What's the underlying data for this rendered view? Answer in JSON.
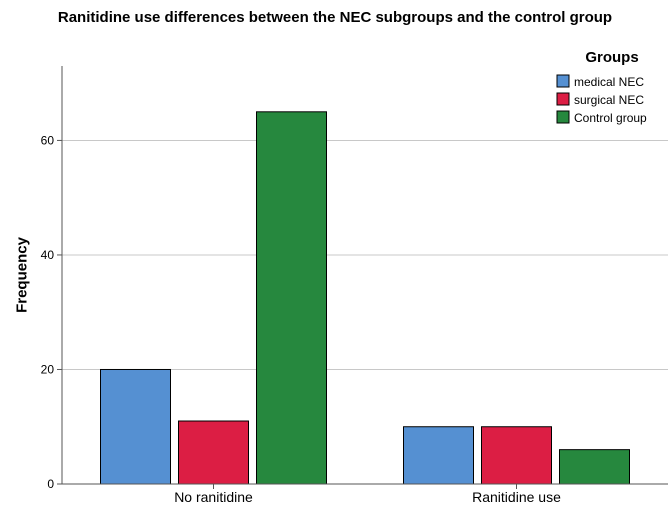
{
  "chart_data": {
    "type": "bar",
    "title": "Ranitidine use differences between the NEC subgroups and the control group",
    "xlabel": "",
    "ylabel": "Frequency",
    "categories": [
      "No ranitidine",
      "Ranitidine use"
    ],
    "series": [
      {
        "name": "medical NEC",
        "values": [
          20,
          10
        ],
        "color": "#5590d2"
      },
      {
        "name": "surgical NEC",
        "values": [
          11,
          10
        ],
        "color": "#dc1e44"
      },
      {
        "name": "Control group",
        "values": [
          65,
          6
        ],
        "color": "#26883e"
      }
    ],
    "ylim": [
      0,
      73
    ],
    "yticks": [
      0,
      20,
      40,
      60
    ],
    "grid": true,
    "legend": {
      "title": "Groups",
      "position": "top-right"
    }
  }
}
